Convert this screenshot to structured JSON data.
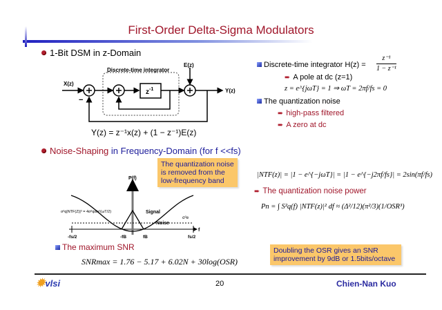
{
  "title": "First-Order Delta-Sigma Modulators",
  "left": {
    "heading1": "1-Bit DSM in z-Domain",
    "diagram": {
      "integrator_label": "Discrete-time integrator",
      "x_label": "X(z)",
      "e_label": "E(z)",
      "y_label": "Y(z)",
      "delay": "z-1",
      "minus": "−"
    },
    "output_equation": "Y(z) = z⁻¹x(z) + (1 − z⁻¹)E(z)",
    "heading2_red": "Noise-Shaping",
    "heading2_blue": " in Frequency-Domain (for f <<fs)",
    "callout": "The quantization noise is removed from the low-frequency band",
    "plot": {
      "y_axis": "P(f)",
      "x_axis": "f",
      "ntf_label": "σ²q|NTF(Z)|² = 4σ²qsin²(ωT/2)",
      "signal_label": "Signal",
      "noise_label": "Noise",
      "floor_label": "σ²e",
      "ticks": [
        "-fs/2",
        "-fB",
        "fB",
        "fs/2"
      ]
    },
    "snr_heading": "The maximum SNR",
    "snr_equation": "SNRmax = 1.76 − 5.17 + 6.02N + 30log(OSR)"
  },
  "right": {
    "integrator": "Discrete-time integrator H(z) =",
    "hz_num": "z⁻¹",
    "hz_den": "1 − z⁻¹",
    "pole": "A pole at dc (z=1)",
    "pole_eq": "z = e^{jωT} = 1 ⇒ ωT = 2πf/fs = 0",
    "qnoise": "The quantization noise",
    "hp": "high-pass filtered",
    "zero": "A zero at dc",
    "ntf_eq": "|NTF(z)| = |1 − e^{−jωT}| = |1 − e^{−j2πf/fs}| = 2sin(πf/fs)",
    "power_heading": "The quantization noise power",
    "pn_eq": "Pn = ∫ S²q(f) |NTF(z)|² df ≈ (Δ²/12)(π²/3)(1/OSR³)",
    "callout": "Doubling the OSR gives an SNR improvement by 9dB or 1.5bits/octave"
  },
  "footer": {
    "page": "20",
    "author": "Chien-Nan Kuo",
    "logo": "vlsi"
  }
}
